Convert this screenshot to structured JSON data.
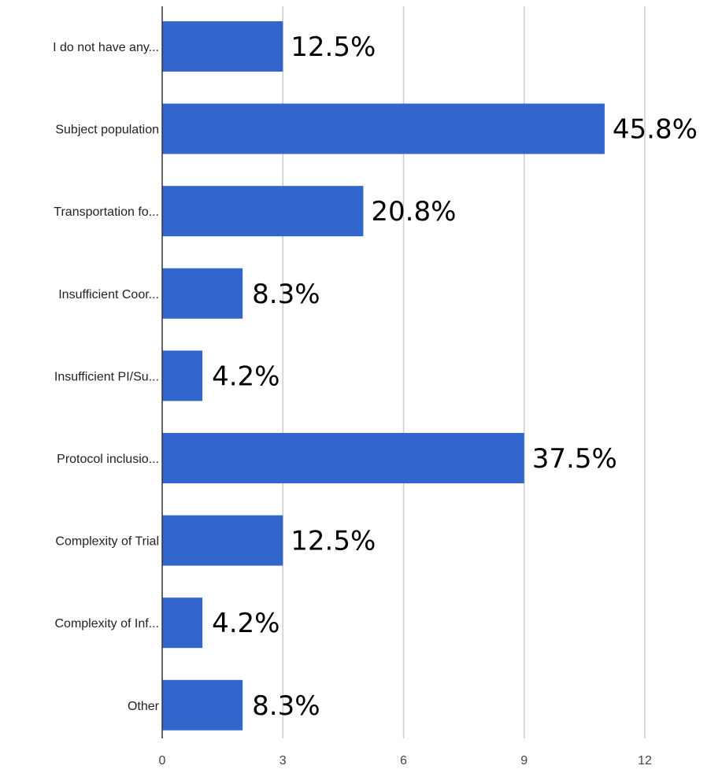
{
  "chart_data": {
    "type": "bar",
    "orientation": "horizontal",
    "categories": [
      "I do not have any...",
      "Subject population",
      "Transportation fo...",
      "Insufficient Coor...",
      "Insufficient PI/Su...",
      "Protocol inclusio...",
      "Complexity of Trial",
      "Complexity of Inf...",
      "Other"
    ],
    "values": [
      3,
      11,
      5,
      2,
      1,
      9,
      3,
      1,
      2
    ],
    "data_labels": [
      "12.5%",
      "45.8%",
      "20.8%",
      "8.3%",
      "4.2%",
      "37.5%",
      "12.5%",
      "4.2%",
      "8.3%"
    ],
    "xlim": [
      0,
      12
    ],
    "xticks": [
      0,
      3,
      6,
      9,
      12
    ],
    "xtick_labels": [
      "0",
      "3",
      "6",
      "9",
      "12"
    ],
    "grid": true,
    "legend": "none",
    "title": "",
    "xlabel": "",
    "ylabel": "",
    "colors": {
      "bar": "#3366cc",
      "grid": "#cccccc",
      "axis": "#333333"
    }
  }
}
